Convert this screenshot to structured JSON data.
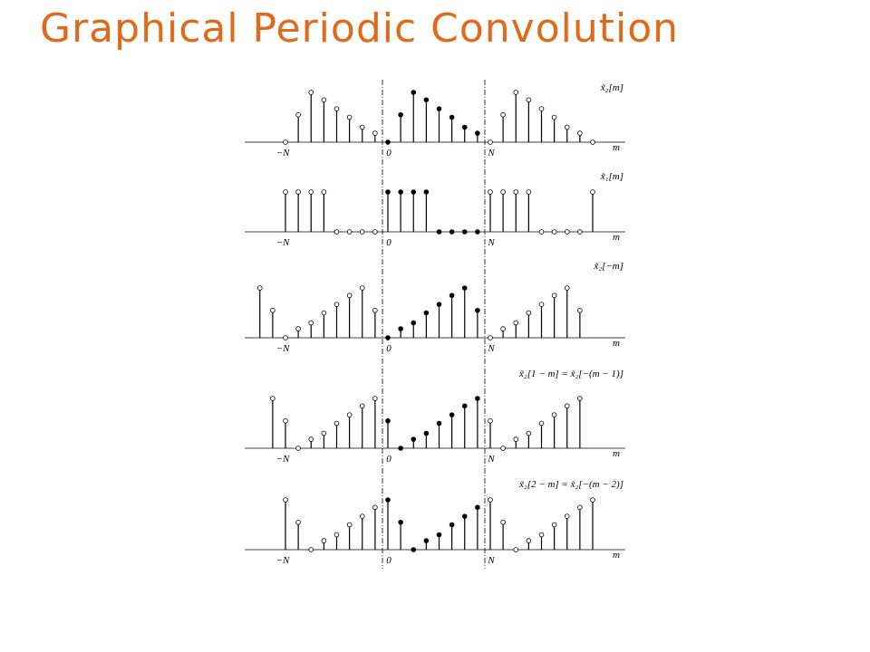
{
  "title": "Graphical Periodic Convolution",
  "panels": [
    {
      "label": "x̃₂[m]",
      "axis": {
        "neg": "−N",
        "zero": "0",
        "pos": "N",
        "var": "m"
      }
    },
    {
      "label": "x̃₁[m]",
      "axis": {
        "neg": "−N",
        "zero": "0",
        "pos": "N",
        "var": "m"
      }
    },
    {
      "label": "x̃₂[−m]",
      "axis": {
        "neg": "−N",
        "zero": "0",
        "pos": "N",
        "var": "m"
      }
    },
    {
      "label": "x̃₂[1 − m] = x̃₂[−(m − 1)]",
      "axis": {
        "neg": "−N",
        "zero": "0",
        "pos": "N",
        "var": "m"
      }
    },
    {
      "label": "x̃₂[2 − m] = x̃₂[−(m − 2)]",
      "axis": {
        "neg": "−N",
        "zero": "0",
        "pos": "N",
        "var": "m"
      }
    }
  ]
}
